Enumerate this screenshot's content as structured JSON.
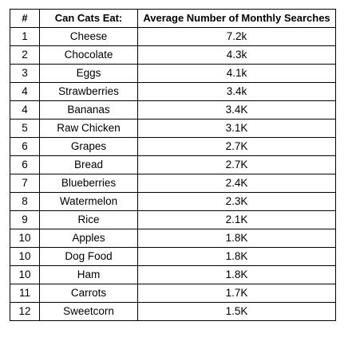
{
  "table": {
    "headers": [
      "#",
      "Can Cats Eat:",
      "Average Number of Monthly Searches"
    ],
    "rows": [
      [
        "1",
        "Cheese",
        "7.2k"
      ],
      [
        "2",
        "Chocolate",
        "4.3k"
      ],
      [
        "3",
        "Eggs",
        "4.1k"
      ],
      [
        "4",
        "Strawberries",
        "3.4k"
      ],
      [
        "4",
        "Bananas",
        "3.4K"
      ],
      [
        "5",
        "Raw Chicken",
        "3.1K"
      ],
      [
        "6",
        "Grapes",
        "2.7K"
      ],
      [
        "6",
        "Bread",
        "2.7K"
      ],
      [
        "7",
        "Blueberries",
        "2.4K"
      ],
      [
        "8",
        "Watermelon",
        "2.3K"
      ],
      [
        "9",
        "Rice",
        "2.1K"
      ],
      [
        "10",
        "Apples",
        "1.8K"
      ],
      [
        "10",
        "Dog Food",
        "1.8K"
      ],
      [
        "10",
        "Ham",
        "1.8K"
      ],
      [
        "11",
        "Carrots",
        "1.7K"
      ],
      [
        "12",
        "Sweetcorn",
        "1.5K"
      ]
    ]
  }
}
